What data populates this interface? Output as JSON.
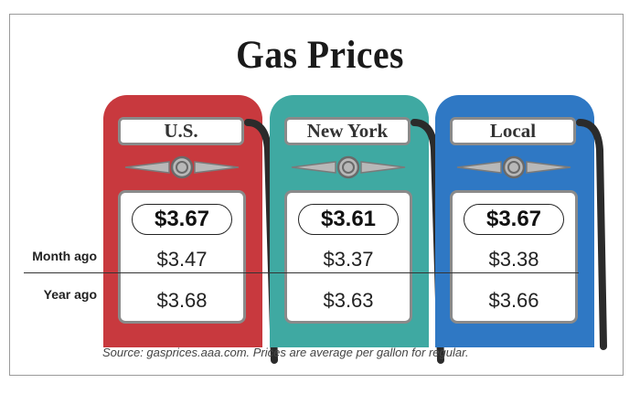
{
  "title": "Gas Prices",
  "row_labels": {
    "month_ago": "Month ago",
    "year_ago": "Year ago"
  },
  "pumps": [
    {
      "name": "U.S.",
      "current": "$3.67",
      "month_ago": "$3.47",
      "year_ago": "$3.68",
      "color": "#c8393e"
    },
    {
      "name": "New York",
      "current": "$3.61",
      "month_ago": "$3.37",
      "year_ago": "$3.63",
      "color": "#3fa9a2"
    },
    {
      "name": "Local",
      "current": "$3.67",
      "month_ago": "$3.38",
      "year_ago": "$3.66",
      "color": "#2f78c4"
    }
  ],
  "source": "Source: gasprices.aaa.com. Prices are average per gallon for regular."
}
